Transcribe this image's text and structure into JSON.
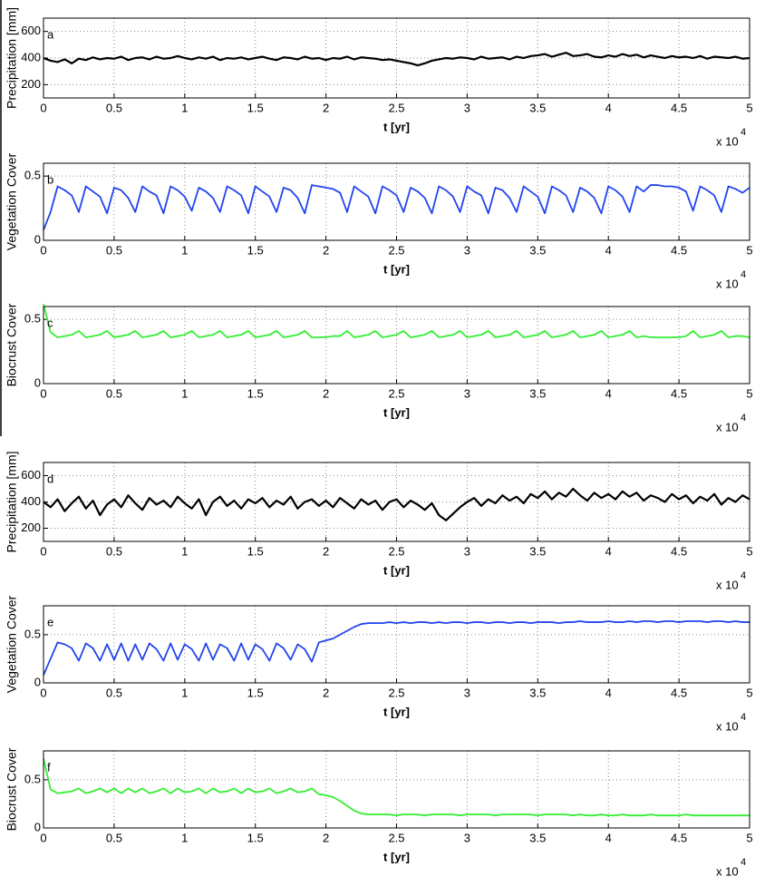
{
  "chart_data": [
    {
      "type": "line",
      "panel_label": "a",
      "ylabel": "Precipitation [mm]",
      "xlabel": "t [yr]",
      "x_multiplier": "x 10",
      "x_exponent": "4",
      "color": "#000000",
      "grid": true,
      "xlim": [
        0,
        5
      ],
      "xticks": [
        0,
        0.5,
        1,
        1.5,
        2,
        2.5,
        3,
        3.5,
        4,
        4.5,
        5
      ],
      "ylim": [
        100,
        700
      ],
      "yticks": [
        200,
        400,
        600
      ],
      "x": [
        0,
        0.05,
        0.1,
        0.15,
        0.2,
        0.25,
        0.3,
        0.35,
        0.4,
        0.45,
        0.5,
        0.55,
        0.6,
        0.65,
        0.7,
        0.75,
        0.8,
        0.85,
        0.9,
        0.95,
        1,
        1.05,
        1.1,
        1.15,
        1.2,
        1.25,
        1.3,
        1.35,
        1.4,
        1.45,
        1.5,
        1.55,
        1.6,
        1.65,
        1.7,
        1.75,
        1.8,
        1.85,
        1.9,
        1.95,
        2,
        2.05,
        2.1,
        2.15,
        2.2,
        2.25,
        2.3,
        2.35,
        2.4,
        2.45,
        2.5,
        2.55,
        2.6,
        2.65,
        2.7,
        2.75,
        2.8,
        2.85,
        2.9,
        2.95,
        3,
        3.05,
        3.1,
        3.15,
        3.2,
        3.25,
        3.3,
        3.35,
        3.4,
        3.45,
        3.5,
        3.55,
        3.6,
        3.65,
        3.7,
        3.75,
        3.8,
        3.85,
        3.9,
        3.95,
        4,
        4.05,
        4.1,
        4.15,
        4.2,
        4.25,
        4.3,
        4.35,
        4.4,
        4.45,
        4.5,
        4.55,
        4.6,
        4.65,
        4.7,
        4.75,
        4.8,
        4.85,
        4.9,
        4.95,
        5
      ],
      "values": [
        400,
        380,
        370,
        390,
        360,
        395,
        385,
        405,
        390,
        400,
        395,
        410,
        385,
        400,
        405,
        390,
        410,
        395,
        400,
        415,
        400,
        390,
        405,
        395,
        410,
        385,
        400,
        395,
        405,
        390,
        400,
        410,
        395,
        385,
        405,
        400,
        390,
        410,
        395,
        400,
        385,
        400,
        395,
        410,
        390,
        405,
        400,
        395,
        385,
        390,
        380,
        370,
        360,
        345,
        360,
        380,
        390,
        400,
        395,
        405,
        400,
        390,
        410,
        395,
        400,
        405,
        390,
        410,
        400,
        415,
        420,
        430,
        410,
        425,
        440,
        415,
        420,
        430,
        410,
        405,
        420,
        410,
        430,
        415,
        425,
        405,
        420,
        410,
        400,
        415,
        405,
        410,
        400,
        415,
        395,
        410,
        405,
        400,
        410,
        395,
        400
      ]
    },
    {
      "type": "line",
      "panel_label": "b",
      "ylabel": "Vegetation Cover",
      "xlabel": "t [yr]",
      "x_multiplier": "x 10",
      "x_exponent": "4",
      "color": "#2244ee",
      "grid": true,
      "xlim": [
        0,
        5
      ],
      "xticks": [
        0,
        0.5,
        1,
        1.5,
        2,
        2.5,
        3,
        3.5,
        4,
        4.5,
        5
      ],
      "ylim": [
        0,
        0.6
      ],
      "yticks": [
        0,
        0.5
      ],
      "x": [
        0,
        0.05,
        0.1,
        0.15,
        0.2,
        0.25,
        0.3,
        0.35,
        0.4,
        0.45,
        0.5,
        0.55,
        0.6,
        0.65,
        0.7,
        0.75,
        0.8,
        0.85,
        0.9,
        0.95,
        1,
        1.05,
        1.1,
        1.15,
        1.2,
        1.25,
        1.3,
        1.35,
        1.4,
        1.45,
        1.5,
        1.55,
        1.6,
        1.65,
        1.7,
        1.75,
        1.8,
        1.85,
        1.9,
        1.95,
        2,
        2.05,
        2.1,
        2.15,
        2.2,
        2.25,
        2.3,
        2.35,
        2.4,
        2.45,
        2.5,
        2.55,
        2.6,
        2.65,
        2.7,
        2.75,
        2.8,
        2.85,
        2.9,
        2.95,
        3,
        3.05,
        3.1,
        3.15,
        3.2,
        3.25,
        3.3,
        3.35,
        3.4,
        3.45,
        3.5,
        3.55,
        3.6,
        3.65,
        3.7,
        3.75,
        3.8,
        3.85,
        3.9,
        3.95,
        4,
        4.05,
        4.1,
        4.15,
        4.2,
        4.25,
        4.3,
        4.35,
        4.4,
        4.45,
        4.5,
        4.55,
        4.6,
        4.65,
        4.7,
        4.75,
        4.8,
        4.85,
        4.9,
        4.95,
        5
      ],
      "values": [
        0.08,
        0.22,
        0.42,
        0.39,
        0.35,
        0.22,
        0.42,
        0.38,
        0.34,
        0.21,
        0.41,
        0.39,
        0.33,
        0.22,
        0.42,
        0.38,
        0.35,
        0.21,
        0.42,
        0.39,
        0.34,
        0.23,
        0.41,
        0.38,
        0.33,
        0.22,
        0.42,
        0.39,
        0.35,
        0.21,
        0.42,
        0.38,
        0.34,
        0.22,
        0.41,
        0.39,
        0.33,
        0.21,
        0.43,
        0.42,
        0.41,
        0.4,
        0.37,
        0.22,
        0.42,
        0.38,
        0.34,
        0.21,
        0.42,
        0.39,
        0.35,
        0.22,
        0.41,
        0.38,
        0.33,
        0.21,
        0.42,
        0.39,
        0.34,
        0.22,
        0.42,
        0.38,
        0.35,
        0.21,
        0.41,
        0.39,
        0.33,
        0.22,
        0.42,
        0.38,
        0.34,
        0.21,
        0.42,
        0.39,
        0.35,
        0.22,
        0.41,
        0.38,
        0.33,
        0.21,
        0.42,
        0.39,
        0.34,
        0.22,
        0.42,
        0.38,
        0.43,
        0.43,
        0.42,
        0.42,
        0.41,
        0.38,
        0.23,
        0.42,
        0.39,
        0.35,
        0.22,
        0.42,
        0.4,
        0.37,
        0.41
      ]
    },
    {
      "type": "line",
      "panel_label": "c",
      "ylabel": "Biocrust Cover",
      "xlabel": "t [yr]",
      "x_multiplier": "x 10",
      "x_exponent": "4",
      "color": "#33ee33",
      "grid": true,
      "xlim": [
        0,
        5
      ],
      "xticks": [
        0,
        0.5,
        1,
        1.5,
        2,
        2.5,
        3,
        3.5,
        4,
        4.5,
        5
      ],
      "ylim": [
        0,
        0.6
      ],
      "yticks": [
        0,
        0.5
      ],
      "x": [
        0,
        0.05,
        0.1,
        0.15,
        0.2,
        0.25,
        0.3,
        0.35,
        0.4,
        0.45,
        0.5,
        0.55,
        0.6,
        0.65,
        0.7,
        0.75,
        0.8,
        0.85,
        0.9,
        0.95,
        1,
        1.05,
        1.1,
        1.15,
        1.2,
        1.25,
        1.3,
        1.35,
        1.4,
        1.45,
        1.5,
        1.55,
        1.6,
        1.65,
        1.7,
        1.75,
        1.8,
        1.85,
        1.9,
        1.95,
        2,
        2.05,
        2.1,
        2.15,
        2.2,
        2.25,
        2.3,
        2.35,
        2.4,
        2.45,
        2.5,
        2.55,
        2.6,
        2.65,
        2.7,
        2.75,
        2.8,
        2.85,
        2.9,
        2.95,
        3,
        3.05,
        3.1,
        3.15,
        3.2,
        3.25,
        3.3,
        3.35,
        3.4,
        3.45,
        3.5,
        3.55,
        3.6,
        3.65,
        3.7,
        3.75,
        3.8,
        3.85,
        3.9,
        3.95,
        4,
        4.05,
        4.1,
        4.15,
        4.2,
        4.25,
        4.3,
        4.35,
        4.4,
        4.45,
        4.5,
        4.55,
        4.6,
        4.65,
        4.7,
        4.75,
        4.8,
        4.85,
        4.9,
        4.95,
        5
      ],
      "values": [
        0.62,
        0.4,
        0.36,
        0.37,
        0.38,
        0.41,
        0.36,
        0.37,
        0.38,
        0.41,
        0.36,
        0.37,
        0.38,
        0.41,
        0.36,
        0.37,
        0.38,
        0.41,
        0.36,
        0.37,
        0.38,
        0.41,
        0.36,
        0.37,
        0.38,
        0.41,
        0.36,
        0.37,
        0.38,
        0.41,
        0.36,
        0.37,
        0.38,
        0.41,
        0.36,
        0.37,
        0.38,
        0.41,
        0.36,
        0.36,
        0.36,
        0.37,
        0.37,
        0.41,
        0.36,
        0.37,
        0.38,
        0.41,
        0.36,
        0.37,
        0.38,
        0.41,
        0.36,
        0.37,
        0.38,
        0.41,
        0.36,
        0.37,
        0.38,
        0.41,
        0.36,
        0.37,
        0.38,
        0.41,
        0.36,
        0.37,
        0.38,
        0.41,
        0.36,
        0.37,
        0.38,
        0.41,
        0.36,
        0.37,
        0.38,
        0.41,
        0.36,
        0.37,
        0.38,
        0.41,
        0.36,
        0.37,
        0.38,
        0.41,
        0.36,
        0.37,
        0.36,
        0.36,
        0.36,
        0.36,
        0.36,
        0.37,
        0.41,
        0.36,
        0.37,
        0.38,
        0.41,
        0.36,
        0.37,
        0.37,
        0.36
      ]
    },
    {
      "type": "line",
      "panel_label": "d",
      "ylabel": "Precipitation [mm]",
      "xlabel": "t [yr]",
      "x_multiplier": "x 10",
      "x_exponent": "4",
      "color": "#000000",
      "grid": true,
      "xlim": [
        0,
        5
      ],
      "xticks": [
        0,
        0.5,
        1,
        1.5,
        2,
        2.5,
        3,
        3.5,
        4,
        4.5,
        5
      ],
      "ylim": [
        100,
        700
      ],
      "yticks": [
        200,
        400,
        600
      ],
      "x": [
        0,
        0.05,
        0.1,
        0.15,
        0.2,
        0.25,
        0.3,
        0.35,
        0.4,
        0.45,
        0.5,
        0.55,
        0.6,
        0.65,
        0.7,
        0.75,
        0.8,
        0.85,
        0.9,
        0.95,
        1,
        1.05,
        1.1,
        1.15,
        1.2,
        1.25,
        1.3,
        1.35,
        1.4,
        1.45,
        1.5,
        1.55,
        1.6,
        1.65,
        1.7,
        1.75,
        1.8,
        1.85,
        1.9,
        1.95,
        2,
        2.05,
        2.1,
        2.15,
        2.2,
        2.25,
        2.3,
        2.35,
        2.4,
        2.45,
        2.5,
        2.55,
        2.6,
        2.65,
        2.7,
        2.75,
        2.8,
        2.85,
        2.9,
        2.95,
        3,
        3.05,
        3.1,
        3.15,
        3.2,
        3.25,
        3.3,
        3.35,
        3.4,
        3.45,
        3.5,
        3.55,
        3.6,
        3.65,
        3.7,
        3.75,
        3.8,
        3.85,
        3.9,
        3.95,
        4,
        4.05,
        4.1,
        4.15,
        4.2,
        4.25,
        4.3,
        4.35,
        4.4,
        4.45,
        4.5,
        4.55,
        4.6,
        4.65,
        4.7,
        4.75,
        4.8,
        4.85,
        4.9,
        4.95,
        5
      ],
      "values": [
        400,
        360,
        420,
        330,
        390,
        440,
        350,
        410,
        300,
        380,
        420,
        360,
        450,
        390,
        340,
        430,
        380,
        410,
        360,
        440,
        390,
        350,
        420,
        300,
        400,
        440,
        370,
        410,
        350,
        420,
        390,
        430,
        360,
        410,
        380,
        440,
        350,
        400,
        420,
        370,
        410,
        360,
        430,
        390,
        350,
        420,
        380,
        410,
        340,
        400,
        420,
        360,
        410,
        380,
        340,
        390,
        300,
        260,
        310,
        360,
        400,
        430,
        370,
        420,
        390,
        450,
        410,
        440,
        390,
        460,
        430,
        480,
        420,
        470,
        440,
        500,
        450,
        410,
        470,
        430,
        460,
        420,
        480,
        440,
        470,
        410,
        450,
        430,
        400,
        460,
        420,
        450,
        390,
        440,
        410,
        460,
        380,
        430,
        400,
        450,
        420
      ]
    },
    {
      "type": "line",
      "panel_label": "e",
      "ylabel": "Vegetation Cover",
      "xlabel": "t [yr]",
      "x_multiplier": "x 10",
      "x_exponent": "4",
      "color": "#2244ee",
      "grid": true,
      "xlim": [
        0,
        5
      ],
      "xticks": [
        0,
        0.5,
        1,
        1.5,
        2,
        2.5,
        3,
        3.5,
        4,
        4.5,
        5
      ],
      "ylim": [
        0,
        0.8
      ],
      "yticks": [
        0,
        0.5
      ],
      "x": [
        0,
        0.05,
        0.1,
        0.15,
        0.2,
        0.25,
        0.3,
        0.35,
        0.4,
        0.45,
        0.5,
        0.55,
        0.6,
        0.65,
        0.7,
        0.75,
        0.8,
        0.85,
        0.9,
        0.95,
        1,
        1.05,
        1.1,
        1.15,
        1.2,
        1.25,
        1.3,
        1.35,
        1.4,
        1.45,
        1.5,
        1.55,
        1.6,
        1.65,
        1.7,
        1.75,
        1.8,
        1.85,
        1.9,
        1.95,
        2,
        2.05,
        2.1,
        2.15,
        2.2,
        2.25,
        2.3,
        2.35,
        2.4,
        2.45,
        2.5,
        2.55,
        2.6,
        2.65,
        2.7,
        2.75,
        2.8,
        2.85,
        2.9,
        2.95,
        3,
        3.05,
        3.1,
        3.15,
        3.2,
        3.25,
        3.3,
        3.35,
        3.4,
        3.45,
        3.5,
        3.55,
        3.6,
        3.65,
        3.7,
        3.75,
        3.8,
        3.85,
        3.9,
        3.95,
        4,
        4.05,
        4.1,
        4.15,
        4.2,
        4.25,
        4.3,
        4.35,
        4.4,
        4.45,
        4.5,
        4.55,
        4.6,
        4.65,
        4.7,
        4.75,
        4.8,
        4.85,
        4.9,
        4.95,
        5
      ],
      "values": [
        0.08,
        0.25,
        0.42,
        0.4,
        0.36,
        0.23,
        0.41,
        0.36,
        0.23,
        0.4,
        0.24,
        0.41,
        0.23,
        0.4,
        0.24,
        0.41,
        0.35,
        0.23,
        0.41,
        0.24,
        0.4,
        0.35,
        0.23,
        0.41,
        0.24,
        0.4,
        0.36,
        0.23,
        0.41,
        0.24,
        0.4,
        0.35,
        0.23,
        0.41,
        0.36,
        0.24,
        0.4,
        0.35,
        0.22,
        0.42,
        0.44,
        0.46,
        0.5,
        0.54,
        0.58,
        0.61,
        0.62,
        0.62,
        0.62,
        0.63,
        0.62,
        0.63,
        0.62,
        0.63,
        0.63,
        0.62,
        0.63,
        0.62,
        0.63,
        0.63,
        0.62,
        0.63,
        0.63,
        0.62,
        0.63,
        0.63,
        0.62,
        0.63,
        0.63,
        0.62,
        0.63,
        0.63,
        0.63,
        0.62,
        0.63,
        0.63,
        0.64,
        0.63,
        0.63,
        0.63,
        0.64,
        0.63,
        0.63,
        0.64,
        0.63,
        0.64,
        0.64,
        0.63,
        0.64,
        0.64,
        0.63,
        0.64,
        0.64,
        0.64,
        0.63,
        0.64,
        0.64,
        0.63,
        0.64,
        0.63,
        0.63
      ]
    },
    {
      "type": "line",
      "panel_label": "f",
      "ylabel": "Biocrust Cover",
      "xlabel": "t [yr]",
      "x_multiplier": "x 10",
      "x_exponent": "4",
      "color": "#33ee33",
      "grid": true,
      "xlim": [
        0,
        5
      ],
      "xticks": [
        0,
        0.5,
        1,
        1.5,
        2,
        2.5,
        3,
        3.5,
        4,
        4.5,
        5
      ],
      "ylim": [
        0,
        0.8
      ],
      "yticks": [
        0,
        0.5
      ],
      "x": [
        0,
        0.05,
        0.1,
        0.15,
        0.2,
        0.25,
        0.3,
        0.35,
        0.4,
        0.45,
        0.5,
        0.55,
        0.6,
        0.65,
        0.7,
        0.75,
        0.8,
        0.85,
        0.9,
        0.95,
        1,
        1.05,
        1.1,
        1.15,
        1.2,
        1.25,
        1.3,
        1.35,
        1.4,
        1.45,
        1.5,
        1.55,
        1.6,
        1.65,
        1.7,
        1.75,
        1.8,
        1.85,
        1.9,
        1.95,
        2,
        2.05,
        2.1,
        2.15,
        2.2,
        2.25,
        2.3,
        2.35,
        2.4,
        2.45,
        2.5,
        2.55,
        2.6,
        2.65,
        2.7,
        2.75,
        2.8,
        2.85,
        2.9,
        2.95,
        3,
        3.05,
        3.1,
        3.15,
        3.2,
        3.25,
        3.3,
        3.35,
        3.4,
        3.45,
        3.5,
        3.55,
        3.6,
        3.65,
        3.7,
        3.75,
        3.8,
        3.85,
        3.9,
        3.95,
        4,
        4.05,
        4.1,
        4.15,
        4.2,
        4.25,
        4.3,
        4.35,
        4.4,
        4.45,
        4.5,
        4.55,
        4.6,
        4.65,
        4.7,
        4.75,
        4.8,
        4.85,
        4.9,
        4.95,
        5
      ],
      "values": [
        0.72,
        0.4,
        0.36,
        0.37,
        0.38,
        0.41,
        0.36,
        0.38,
        0.41,
        0.37,
        0.41,
        0.36,
        0.41,
        0.37,
        0.41,
        0.36,
        0.38,
        0.41,
        0.36,
        0.41,
        0.37,
        0.38,
        0.41,
        0.36,
        0.41,
        0.37,
        0.38,
        0.41,
        0.36,
        0.41,
        0.37,
        0.38,
        0.41,
        0.36,
        0.38,
        0.41,
        0.37,
        0.38,
        0.41,
        0.35,
        0.34,
        0.32,
        0.28,
        0.23,
        0.18,
        0.15,
        0.14,
        0.14,
        0.14,
        0.14,
        0.13,
        0.14,
        0.14,
        0.14,
        0.13,
        0.14,
        0.14,
        0.14,
        0.14,
        0.13,
        0.14,
        0.14,
        0.14,
        0.14,
        0.13,
        0.14,
        0.14,
        0.14,
        0.14,
        0.14,
        0.13,
        0.14,
        0.14,
        0.14,
        0.14,
        0.13,
        0.14,
        0.13,
        0.13,
        0.14,
        0.13,
        0.13,
        0.14,
        0.13,
        0.13,
        0.13,
        0.14,
        0.13,
        0.13,
        0.13,
        0.13,
        0.14,
        0.13,
        0.13,
        0.13,
        0.13,
        0.13,
        0.13,
        0.13,
        0.13,
        0.13
      ]
    }
  ]
}
